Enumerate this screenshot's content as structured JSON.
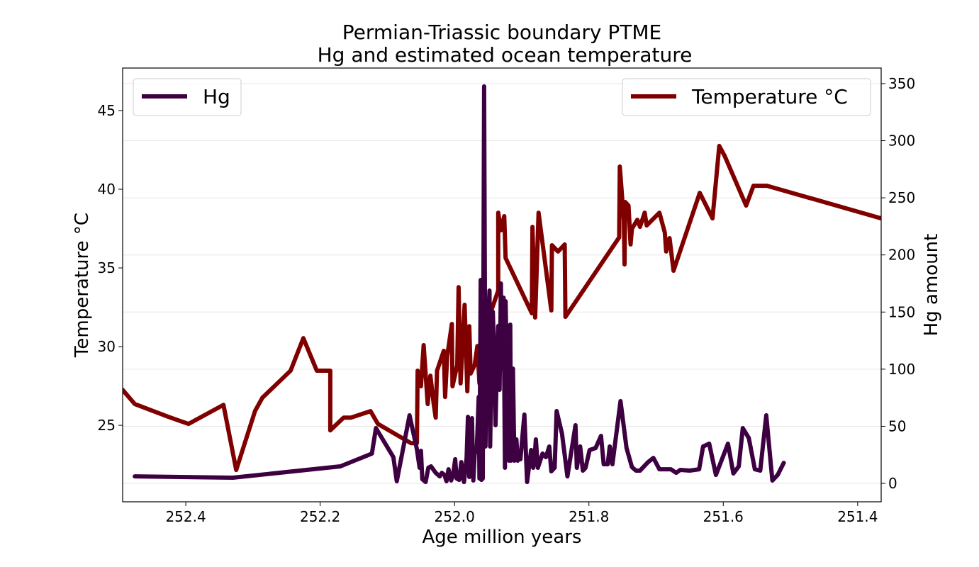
{
  "chart_data": {
    "type": "line",
    "title": [
      "Permian-Triassic boundary PTME",
      "Hg and estimated ocean temperature"
    ],
    "xlabel": "Age million years",
    "ylabel_left": "Temperature  °C",
    "ylabel_right": "Hg amount",
    "x_reversed": true,
    "xlim": [
      252.494,
      251.365
    ],
    "ylim_left": [
      20.14,
      47.7
    ],
    "ylim_right": [
      -16.1,
      363.6
    ],
    "x_ticks": [
      "252.4",
      "252.2",
      "252.0",
      "251.8",
      "251.6",
      "251.4"
    ],
    "y_left_ticks": [
      "25",
      "30",
      "35",
      "40",
      "45"
    ],
    "y_right_ticks": [
      "0",
      "50",
      "100",
      "150",
      "200",
      "250",
      "300",
      "350"
    ],
    "grid": "horizontal, right axis",
    "legend_left": "top-left",
    "legend_right": "top-right",
    "series": [
      {
        "name": "Temperature °C",
        "axis": "left",
        "color": "#800000",
        "x": [
          252.494,
          252.476,
          252.426,
          252.396,
          252.344,
          252.325,
          252.297,
          252.286,
          252.244,
          252.225,
          252.205,
          252.185,
          252.185,
          252.165,
          252.154,
          252.125,
          252.114,
          252.065,
          252.056,
          252.055,
          252.05,
          252.046,
          252.04,
          252.036,
          252.031,
          252.028,
          252.026,
          252.016,
          252.014,
          252.011,
          252.004,
          252.003,
          251.996,
          251.994,
          251.991,
          251.985,
          251.981,
          251.978,
          251.976,
          251.97,
          251.966,
          251.963,
          251.955,
          251.946,
          251.935,
          251.935,
          251.931,
          251.926,
          251.924,
          251.885,
          251.884,
          251.88,
          251.875,
          251.856,
          251.855,
          251.846,
          251.836,
          251.835,
          251.755,
          251.754,
          251.748,
          251.747,
          251.746,
          251.741,
          251.738,
          251.736,
          251.728,
          251.724,
          251.717,
          251.714,
          251.695,
          251.687,
          251.685,
          251.68,
          251.674,
          251.635,
          251.616,
          251.606,
          251.598,
          251.566,
          251.555,
          251.535,
          251.365
        ],
        "y": [
          27.25,
          26.35,
          25.54,
          25.09,
          26.3,
          22.16,
          25.9,
          26.75,
          28.47,
          30.54,
          28.47,
          28.47,
          24.68,
          25.49,
          25.49,
          25.9,
          25.09,
          23.87,
          23.87,
          28.47,
          27.48,
          30.09,
          26.35,
          28.15,
          26.35,
          25.49,
          28.47,
          29.73,
          26.8,
          29.37,
          31.44,
          27.48,
          28.83,
          33.78,
          27.66,
          32.66,
          27.16,
          31.3,
          28.29,
          28.83,
          30.04,
          27.66,
          30.94,
          32.21,
          33.56,
          38.51,
          37.39,
          38.29,
          35.63,
          32.12,
          37.61,
          31.85,
          38.51,
          32.3,
          36.44,
          36.04,
          36.49,
          31.89,
          36.94,
          41.44,
          38.06,
          35.22,
          39.19,
          38.96,
          36.49,
          37.48,
          38.06,
          37.61,
          38.51,
          37.7,
          38.51,
          37.25,
          36.04,
          36.89,
          34.82,
          39.77,
          38.15,
          42.75,
          42.12,
          38.96,
          40.22,
          40.22,
          38.15
        ]
      },
      {
        "name": "Hg",
        "axis": "right",
        "color": "#3d0040",
        "x": [
          252.476,
          252.33,
          252.17,
          252.123,
          252.117,
          252.091,
          252.086,
          252.067,
          252.056,
          252.052,
          252.05,
          252.048,
          252.043,
          252.039,
          252.035,
          252.028,
          252.022,
          252.019,
          252.015,
          252.012,
          252.009,
          252.005,
          252.002,
          251.999,
          251.997,
          251.993,
          251.99,
          251.986,
          251.982,
          251.98,
          251.978,
          251.976,
          251.974,
          251.972,
          251.97,
          251.967,
          251.964,
          251.963,
          251.961,
          251.96,
          251.958,
          251.956,
          251.954,
          251.952,
          251.948,
          251.947,
          251.945,
          251.943,
          251.941,
          251.939,
          251.938,
          251.936,
          251.935,
          251.933,
          251.931,
          251.93,
          251.927,
          251.925,
          251.924,
          251.921,
          251.919,
          251.917,
          251.916,
          251.913,
          251.911,
          251.908,
          251.906,
          251.904,
          251.902,
          251.896,
          251.892,
          251.886,
          251.883,
          251.881,
          251.879,
          251.876,
          251.869,
          251.864,
          251.859,
          251.856,
          251.851,
          251.848,
          251.84,
          251.832,
          251.82,
          251.818,
          251.813,
          251.809,
          251.805,
          251.799,
          251.79,
          251.782,
          251.778,
          251.772,
          251.769,
          251.765,
          251.753,
          251.744,
          251.736,
          251.73,
          251.724,
          251.712,
          251.704,
          251.695,
          251.678,
          251.67,
          251.664,
          251.65,
          251.636,
          251.63,
          251.621,
          251.611,
          251.593,
          251.585,
          251.577,
          251.571,
          251.562,
          251.553,
          251.545,
          251.536,
          251.527,
          251.519,
          251.51
        ],
        "y": [
          6.2,
          5.0,
          14.9,
          26.1,
          48.4,
          23.0,
          1.9,
          59.6,
          29.8,
          13.7,
          28.5,
          3.7,
          1.2,
          13.7,
          14.9,
          9.3,
          6.2,
          9.3,
          7.4,
          1.9,
          12.4,
          2.5,
          8.1,
          21.1,
          4.3,
          3.1,
          18.6,
          1.2,
          22.3,
          58.3,
          5.6,
          34.8,
          57.1,
          2.5,
          26.1,
          28.5,
          75.7,
          4.3,
          178.1,
          3.1,
          4.3,
          347.5,
          32.3,
          116.1,
          168.8,
          32.3,
          100.5,
          150.2,
          112.9,
          50.9,
          75.7,
          119.2,
          137.8,
          81.9,
          175.0,
          100.5,
          162.6,
          13.7,
          159.5,
          63.3,
          19.9,
          139.0,
          19.9,
          100.5,
          19.9,
          38.5,
          19.9,
          26.1,
          21.1,
          60.2,
          1.2,
          29.2,
          13.7,
          21.1,
          38.5,
          13.7,
          26.1,
          23.0,
          32.3,
          10.6,
          13.7,
          63.3,
          43.4,
          6.2,
          50.9,
          13.7,
          32.3,
          11.2,
          13.7,
          29.2,
          31.0,
          41.6,
          16.8,
          16.8,
          32.3,
          16.8,
          72.0,
          31.0,
          14.3,
          11.2,
          11.2,
          18.6,
          22.3,
          12.4,
          12.4,
          9.3,
          11.8,
          11.2,
          12.4,
          32.3,
          34.8,
          7.4,
          34.8,
          8.7,
          14.9,
          48.4,
          39.7,
          12.4,
          11.2,
          59.6,
          2.5,
          7.4,
          18.0
        ]
      }
    ]
  }
}
